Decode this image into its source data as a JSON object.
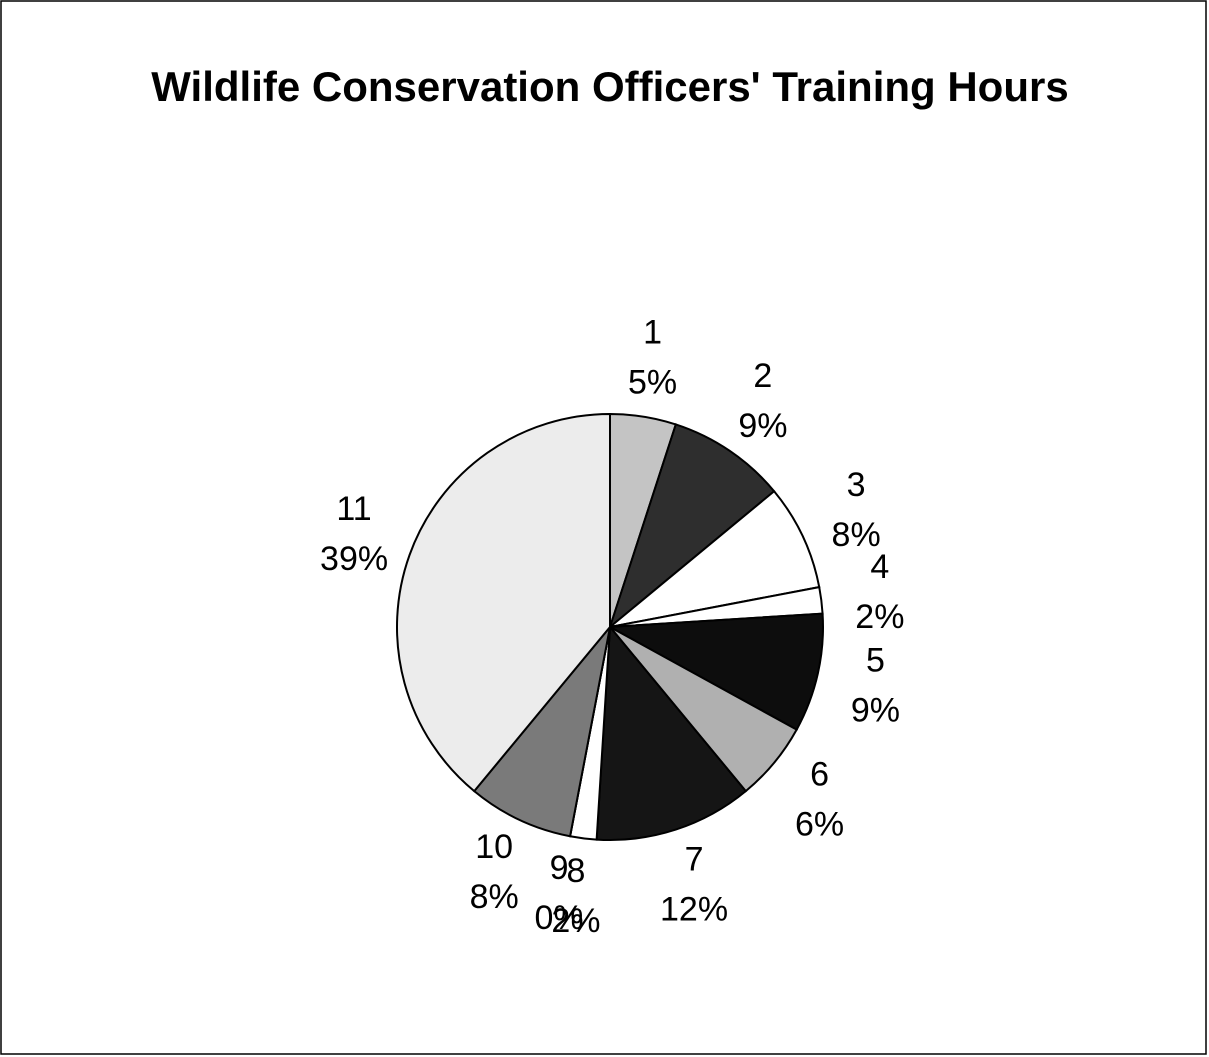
{
  "chart_data": {
    "type": "pie",
    "title": "Wildlife Conservation Officers' Training Hours",
    "categories": [
      "1",
      "2",
      "3",
      "4",
      "5",
      "6",
      "7",
      "8",
      "9",
      "10",
      "11"
    ],
    "values": [
      5,
      9,
      8,
      2,
      9,
      6,
      12,
      2,
      0,
      8,
      39
    ],
    "value_labels": [
      "5%",
      "9%",
      "8%",
      "2%",
      "9%",
      "6%",
      "12%",
      "2%",
      "0%",
      "8%",
      "39%"
    ],
    "colors": [
      "#c4c4c4",
      "#2e2e2e",
      "#ffffff",
      "#ffffff",
      "#0d0d0d",
      "#b0b0b0",
      "#151515",
      "#ffffff",
      "#ffffff",
      "#7a7a7a",
      "#ececec"
    ]
  }
}
